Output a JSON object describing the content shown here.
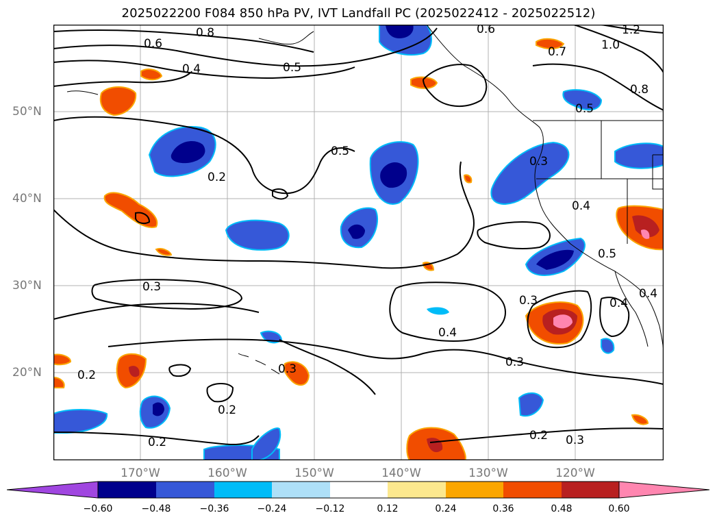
{
  "title": "2025022200 F084 850 hPa PV, IVT Landfall PC (2025022412 - 2025022512)",
  "lat_labels": [
    {
      "text": "50°N",
      "lat": 50
    },
    {
      "text": "40°N",
      "lat": 40
    },
    {
      "text": "30°N",
      "lat": 30
    },
    {
      "text": "20°N",
      "lat": 20
    }
  ],
  "lon_labels": [
    {
      "text": "170°W",
      "lon": -170
    },
    {
      "text": "160°W",
      "lon": -160
    },
    {
      "text": "150°W",
      "lon": -150
    },
    {
      "text": "140°W",
      "lon": -140
    },
    {
      "text": "130°W",
      "lon": -130
    },
    {
      "text": "120°W",
      "lon": -120
    }
  ],
  "contour_labels": [
    "0.8",
    "0.6",
    "0.4",
    "0.5",
    "0.6",
    "1.2",
    "1.0",
    "0.7",
    "0.8",
    "0.5",
    "0.5",
    "0.2",
    "0.3",
    "0.4",
    "0.5",
    "0.3",
    "0.3",
    "0.4",
    "0.4",
    "0.4",
    "0.2",
    "0.3",
    "0.3",
    "0.2",
    "0.2",
    "0.2",
    "0.3"
  ],
  "colorbar": {
    "colors": [
      "#a046e0",
      "#00008c",
      "#3658d8",
      "#00bcf8",
      "#aee0f8",
      "#ffffff",
      "#fce88e",
      "#fba600",
      "#f14d00",
      "#b82020",
      "#ff86b0"
    ],
    "ticks": [
      "−0.60",
      "−0.48",
      "−0.36",
      "−0.24",
      "−0.12",
      "0.12",
      "0.24",
      "0.36",
      "0.48",
      "0.60"
    ]
  }
}
